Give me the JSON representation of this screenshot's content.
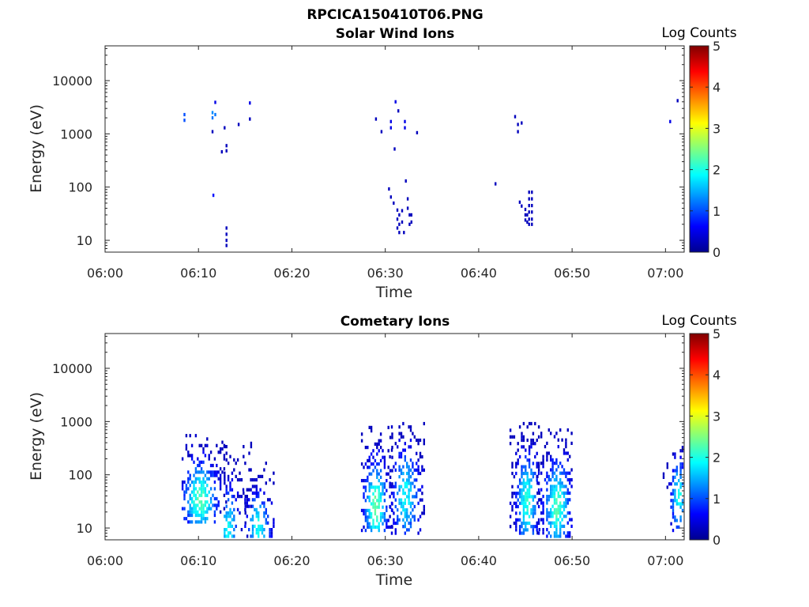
{
  "figure_title": "RPCICA150410T06.PNG",
  "colorbar": {
    "label": "Log Counts",
    "range": [
      0,
      5
    ],
    "ticks": [
      "0",
      "1",
      "2",
      "3",
      "4",
      "5"
    ]
  },
  "chart_data": [
    {
      "type": "heatmap",
      "title": "Solar Wind Ions",
      "xlabel": "Time",
      "ylabel": "Energy (eV)",
      "y_scale": "log",
      "xlim": [
        "06:00",
        "07:02"
      ],
      "ylim": [
        6,
        45000
      ],
      "x_ticks": [
        "06:00",
        "06:10",
        "06:20",
        "06:30",
        "06:40",
        "06:50",
        "07:00"
      ],
      "y_ticks": [
        "10",
        "100",
        "1000",
        "10000"
      ],
      "cells": [
        [
          "06:08.5",
          1800,
          1.0
        ],
        [
          "06:08.5",
          2300,
          1.0
        ],
        [
          "06:11.5",
          2000,
          1.2
        ],
        [
          "06:11.5",
          2500,
          1.3
        ],
        [
          "06:11.8",
          2300,
          1.2
        ],
        [
          "06:11.8",
          3900,
          0.5
        ],
        [
          "06:11.5",
          1100,
          0.3
        ],
        [
          "06:11.6",
          70,
          0.7
        ],
        [
          "06:12.5",
          460,
          0.3
        ],
        [
          "06:12.8",
          1300,
          0.3
        ],
        [
          "06:13.0",
          600,
          0.3
        ],
        [
          "06:13.0",
          480,
          0.3
        ],
        [
          "06:13.0",
          8,
          0.3
        ],
        [
          "06:13.0",
          10,
          0.3
        ],
        [
          "06:13.0",
          13,
          0.3
        ],
        [
          "06:13.0",
          17,
          0.3
        ],
        [
          "06:14.3",
          1500,
          0.3
        ],
        [
          "06:15.5",
          1900,
          0.3
        ],
        [
          "06:15.5",
          3800,
          0.5
        ],
        [
          "06:29.0",
          1900,
          0.3
        ],
        [
          "06:29.6",
          1100,
          0.3
        ],
        [
          "06:30.6",
          1700,
          0.5
        ],
        [
          "06:30.6",
          1300,
          0.5
        ],
        [
          "06:31.1",
          4000,
          0.5
        ],
        [
          "06:31.4",
          2700,
          0.3
        ],
        [
          "06:31.0",
          520,
          0.3
        ],
        [
          "06:32.1",
          1700,
          0.5
        ],
        [
          "06:32.1",
          1300,
          0.5
        ],
        [
          "06:33.4",
          1050,
          0.3
        ],
        [
          "06:30.4",
          92,
          0.3
        ],
        [
          "06:30.6",
          65,
          0.3
        ],
        [
          "06:30.9",
          50,
          0.3
        ],
        [
          "06:32.2",
          130,
          0.3
        ],
        [
          "06:31.3",
          37,
          0.3
        ],
        [
          "06:31.3",
          25,
          0.3
        ],
        [
          "06:31.3",
          17,
          0.3
        ],
        [
          "06:31.5",
          30,
          0.3
        ],
        [
          "06:31.5",
          20,
          0.3
        ],
        [
          "06:31.5",
          14,
          0.3
        ],
        [
          "06:31.8",
          36,
          0.3
        ],
        [
          "06:31.8",
          22,
          0.3
        ],
        [
          "06:32.0",
          14,
          0.3
        ],
        [
          "06:32.4",
          60,
          0.3
        ],
        [
          "06:32.4",
          40,
          0.3
        ],
        [
          "06:32.6",
          30,
          0.3
        ],
        [
          "06:32.6",
          20,
          0.3
        ],
        [
          "06:32.8",
          30,
          0.3
        ],
        [
          "06:32.8",
          22,
          0.3
        ],
        [
          "06:41.8",
          115,
          0.3
        ],
        [
          "06:43.9",
          2100,
          0.3
        ],
        [
          "06:44.2",
          1500,
          0.3
        ],
        [
          "06:44.2",
          1100,
          0.3
        ],
        [
          "06:44.6",
          1600,
          0.3
        ],
        [
          "06:44.4",
          52,
          0.3
        ],
        [
          "06:44.6",
          44,
          0.3
        ],
        [
          "06:45.0",
          38,
          0.3
        ],
        [
          "06:45.0",
          30,
          0.3
        ],
        [
          "06:45.0",
          24,
          0.3
        ],
        [
          "06:45.2",
          30,
          0.3
        ],
        [
          "06:45.2",
          22,
          0.3
        ],
        [
          "06:45.4",
          80,
          0.3
        ],
        [
          "06:45.4",
          60,
          0.3
        ],
        [
          "06:45.4",
          45,
          0.3
        ],
        [
          "06:45.4",
          34,
          0.3
        ],
        [
          "06:45.4",
          25,
          0.3
        ],
        [
          "06:45.4",
          20,
          0.3
        ],
        [
          "06:45.7",
          80,
          0.3
        ],
        [
          "06:45.7",
          60,
          0.3
        ],
        [
          "06:45.7",
          45,
          0.3
        ],
        [
          "06:45.7",
          34,
          0.3
        ],
        [
          "06:45.7",
          25,
          0.3
        ],
        [
          "06:45.7",
          20,
          0.3
        ],
        [
          "07:00.5",
          1700,
          0.5
        ],
        [
          "07:01.3",
          4200,
          0.3
        ]
      ]
    },
    {
      "type": "heatmap",
      "title": "Cometary Ions",
      "xlabel": "Time",
      "ylabel": "Energy (eV)",
      "y_scale": "log",
      "xlim": [
        "06:00",
        "07:02"
      ],
      "ylim": [
        6,
        45000
      ],
      "x_ticks": [
        "06:00",
        "06:10",
        "06:20",
        "06:30",
        "06:40",
        "06:50",
        "07:00"
      ],
      "y_ticks": [
        "10",
        "100",
        "1000",
        "10000"
      ],
      "bursts": [
        {
          "t": [
            "06:08.3",
            "06:13.0"
          ],
          "e": [
            13,
            550
          ],
          "c": [
            "06:10.2",
            35
          ],
          "peak": 2.1,
          "fill": 0.6,
          "seed": 1
        },
        {
          "t": [
            "06:12.8",
            "06:15.8"
          ],
          "e": [
            7,
            450
          ],
          "c": [
            "06:13.2",
            9
          ],
          "peak": 1.7,
          "fill": 0.5,
          "seed": 2
        },
        {
          "t": [
            "06:14.8",
            "06:18.2"
          ],
          "e": [
            7,
            180
          ],
          "c": [
            "06:16.4",
            11
          ],
          "peak": 1.8,
          "fill": 0.45,
          "seed": 3
        },
        {
          "t": [
            "06:27.5",
            "06:30.8"
          ],
          "e": [
            9,
            850
          ],
          "c": [
            "06:29.0",
            25
          ],
          "peak": 2.2,
          "fill": 0.62,
          "seed": 4
        },
        {
          "t": [
            "06:30.5",
            "06:34.2"
          ],
          "e": [
            8,
            1000
          ],
          "c": [
            "06:32.2",
            40
          ],
          "peak": 1.7,
          "fill": 0.5,
          "seed": 5
        },
        {
          "t": [
            "06:43.4",
            "06:46.6"
          ],
          "e": [
            8,
            1000
          ],
          "c": [
            "06:45.2",
            30
          ],
          "peak": 1.9,
          "fill": 0.58,
          "seed": 6
        },
        {
          "t": [
            "06:46.3",
            "06:50.0"
          ],
          "e": [
            7,
            700
          ],
          "c": [
            "06:48.4",
            25
          ],
          "peak": 2.1,
          "fill": 0.6,
          "seed": 7
        },
        {
          "t": [
            "06:59.8",
            "07:02.0"
          ],
          "e": [
            9,
            330
          ],
          "c": [
            "07:01.4",
            40
          ],
          "peak": 1.8,
          "fill": 0.55,
          "seed": 8
        }
      ]
    }
  ]
}
